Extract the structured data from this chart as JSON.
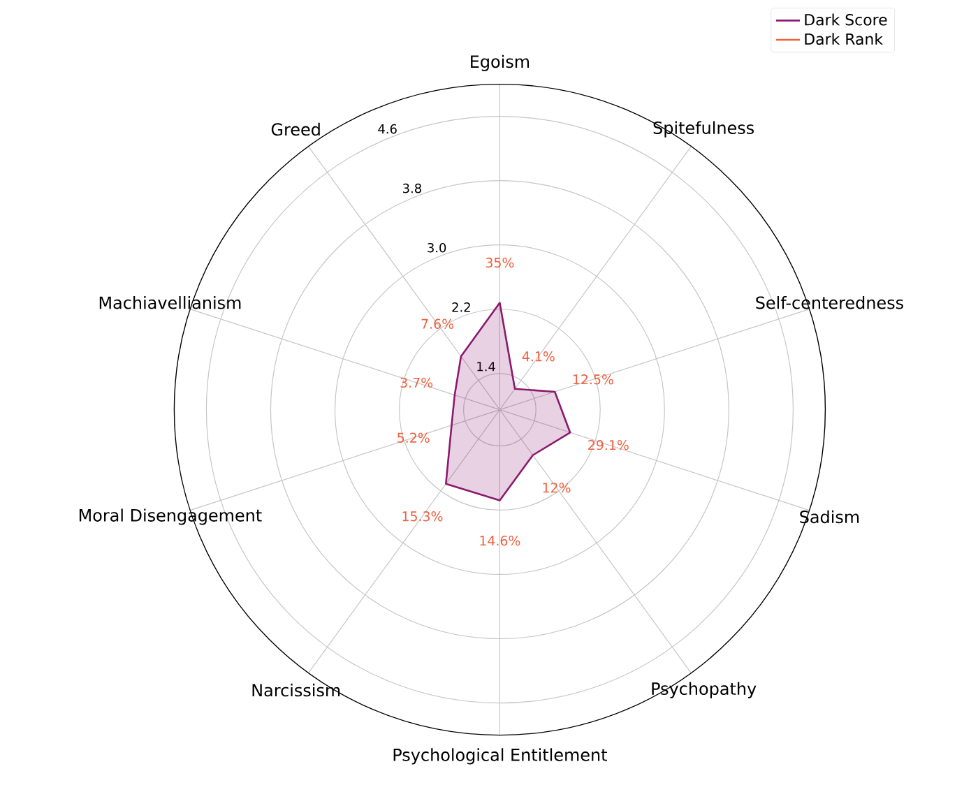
{
  "chart_data": {
    "type": "radar",
    "categories": [
      "Egoism",
      "Spitefulness",
      "Self-centeredness",
      "Sadism",
      "Psychopathy",
      "Psychological Entitlement",
      "Narcissism",
      "Moral Disengagement",
      "Machiavellianism",
      "Greed"
    ],
    "series": [
      {
        "name": "Dark Score",
        "color": "#8b1a6e",
        "values": [
          2.28,
          1.27,
          1.67,
          1.87,
          1.65,
          2.08,
          2.09,
          1.58,
          1.54,
          1.77
        ]
      },
      {
        "name": "Dark Rank",
        "color": "#f0603f",
        "values": [
          null,
          null,
          null,
          null,
          null,
          null,
          null,
          null,
          null,
          null
        ],
        "value_labels": [
          "35%",
          "4.1%",
          "12.5%",
          "29.1%",
          "12%",
          "14.6%",
          "15.3%",
          "5.2%",
          "3.7%",
          "7.6%"
        ]
      }
    ],
    "ylim": [
      0.95,
      5
    ],
    "yticks": [
      1.4,
      2.2,
      {
        "value": 3.0,
        "label": "3.0"
      },
      3.8,
      4.6
    ],
    "grid": true,
    "legend": "top right"
  }
}
